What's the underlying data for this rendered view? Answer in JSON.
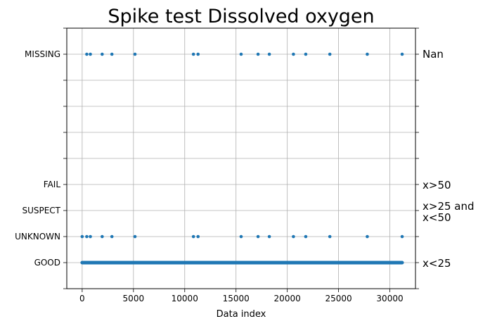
{
  "chart_data": {
    "type": "scatter",
    "title": "Spike test Dissolved oxygen",
    "xlabel": "Data index",
    "ylabel": "",
    "xlim": [
      -1500,
      32500
    ],
    "x_ticks": [
      0,
      5000,
      10000,
      15000,
      20000,
      25000,
      30000
    ],
    "y_categories": [
      {
        "value": 0,
        "label": "",
        "right_label": ""
      },
      {
        "value": 1,
        "label": "GOOD",
        "right_label": "x<25"
      },
      {
        "value": 2,
        "label": "UNKNOWN",
        "right_label": ""
      },
      {
        "value": 3,
        "label": "SUSPECT",
        "right_label": "x>25 and x<50"
      },
      {
        "value": 4,
        "label": "FAIL",
        "right_label": "x>50"
      },
      {
        "value": 5,
        "label": "",
        "right_label": ""
      },
      {
        "value": 6,
        "label": "",
        "right_label": ""
      },
      {
        "value": 7,
        "label": "",
        "right_label": ""
      },
      {
        "value": 8,
        "label": "",
        "right_label": ""
      },
      {
        "value": 9,
        "label": "MISSING",
        "right_label": "Nan"
      },
      {
        "value": 10,
        "label": "",
        "right_label": ""
      }
    ],
    "ylim": [
      0,
      10
    ],
    "grid": true,
    "color": "#1f77b4",
    "series": [
      {
        "flag": "GOOD",
        "y": 1,
        "range": [
          0,
          31200
        ],
        "note_dense": true
      },
      {
        "flag": "UNKNOWN",
        "y": 2,
        "x": [
          0,
          450,
          800,
          1950,
          2900,
          5150,
          10850,
          11300,
          15500,
          17150,
          18250,
          20600,
          21800,
          24150,
          27800,
          31200
        ]
      },
      {
        "flag": "MISSING",
        "y": 9,
        "x": [
          450,
          800,
          1950,
          2900,
          5150,
          10850,
          11300,
          15500,
          17150,
          18250,
          20600,
          21800,
          24150,
          27800,
          31200
        ]
      }
    ]
  },
  "labels": {
    "title": "Spike test Dissolved oxygen",
    "xlabel": "Data index",
    "right_fail": "x>50",
    "right_good": "x<25",
    "right_missing": "Nan",
    "right_suspect_line1": "x>25 and",
    "right_suspect_line2": "x<50"
  }
}
